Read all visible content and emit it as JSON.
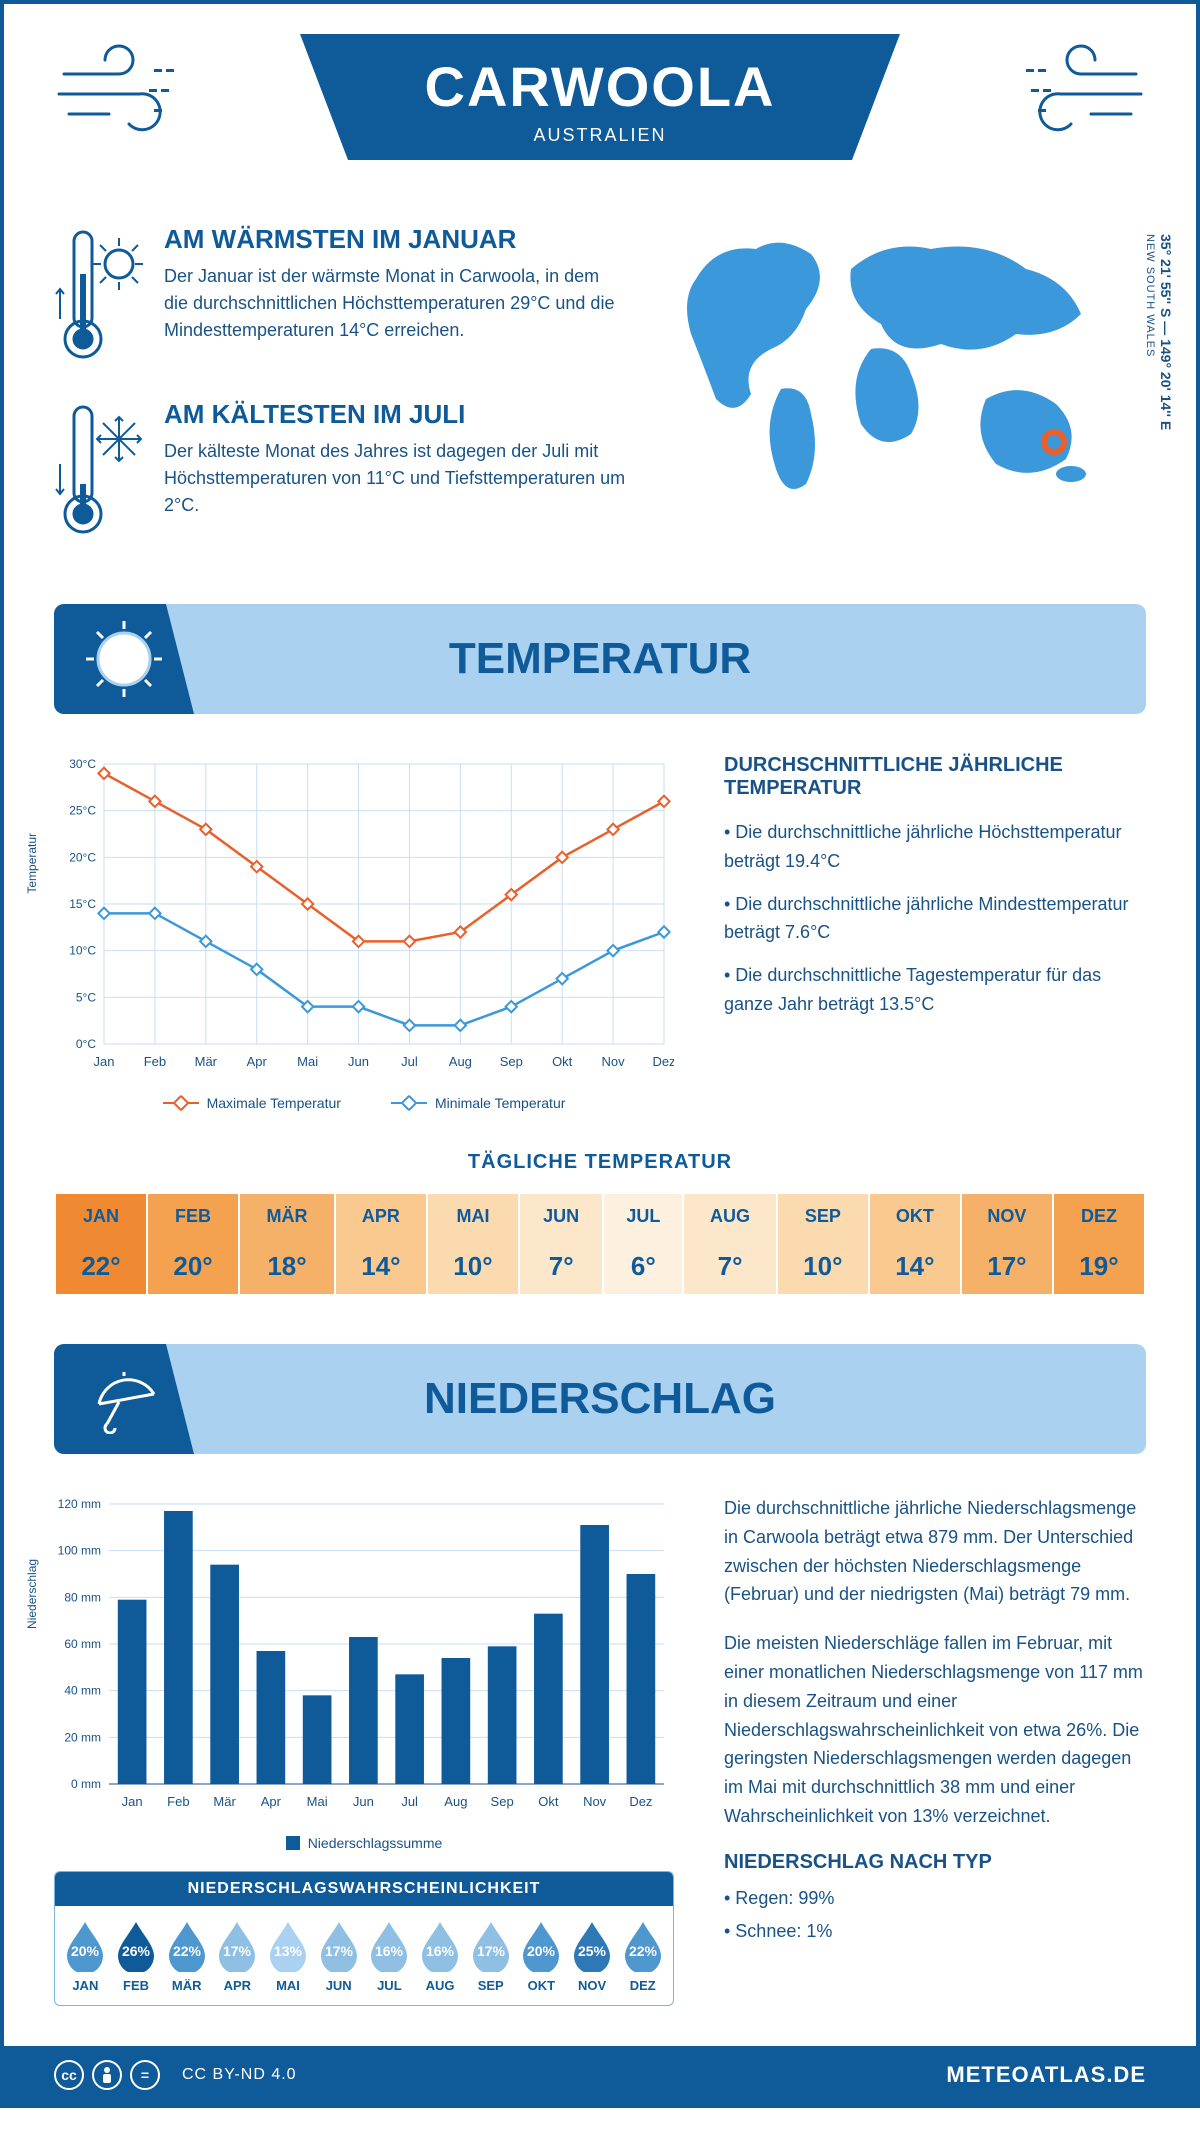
{
  "header": {
    "title": "CARWOOLA",
    "subtitle": "AUSTRALIEN"
  },
  "coords": {
    "latlon": "35° 21' 55'' S — 149° 20' 14'' E",
    "region": "NEW SOUTH WALES"
  },
  "facts": {
    "warm": {
      "title": "AM WÄRMSTEN IM JANUAR",
      "text": "Der Januar ist der wärmste Monat in Carwoola, in dem die durchschnittlichen Höchsttemperaturen 29°C und die Mindesttemperaturen 14°C erreichen."
    },
    "cold": {
      "title": "AM KÄLTESTEN IM JULI",
      "text": "Der kälteste Monat des Jahres ist dagegen der Juli mit Höchsttemperaturen von 11°C und Tiefsttemperaturen um 2°C."
    }
  },
  "sections": {
    "temp": "TEMPERATUR",
    "precip": "NIEDERSCHLAG"
  },
  "temp_chart": {
    "type": "line",
    "months": [
      "Jan",
      "Feb",
      "Mär",
      "Apr",
      "Mai",
      "Jun",
      "Jul",
      "Aug",
      "Sep",
      "Okt",
      "Nov",
      "Dez"
    ],
    "max": [
      29,
      26,
      23,
      19,
      15,
      11,
      11,
      12,
      16,
      20,
      23,
      26
    ],
    "min": [
      14,
      14,
      11,
      8,
      4,
      4,
      2,
      2,
      4,
      7,
      10,
      12
    ],
    "ylim": [
      0,
      30
    ],
    "ytick_step": 5,
    "y_unit": "°C",
    "y_label": "Temperatur",
    "colors": {
      "max": "#e8602c",
      "min": "#3b98da",
      "grid": "#c9def2",
      "axis": "#185286"
    },
    "legend": {
      "max": "Maximale Temperatur",
      "min": "Minimale Temperatur"
    }
  },
  "temp_info": {
    "heading": "DURCHSCHNITTLICHE JÄHRLICHE TEMPERATUR",
    "b1": "• Die durchschnittliche jährliche Höchsttemperatur beträgt 19.4°C",
    "b2": "• Die durchschnittliche jährliche Mindesttemperatur beträgt 7.6°C",
    "b3": "• Die durchschnittliche Tagestemperatur für das ganze Jahr beträgt 13.5°C"
  },
  "daily": {
    "heading": "TÄGLICHE TEMPERATUR",
    "months": [
      "JAN",
      "FEB",
      "MÄR",
      "APR",
      "MAI",
      "JUN",
      "JUL",
      "AUG",
      "SEP",
      "OKT",
      "NOV",
      "DEZ"
    ],
    "values": [
      "22°",
      "20°",
      "18°",
      "14°",
      "10°",
      "7°",
      "6°",
      "7°",
      "10°",
      "14°",
      "17°",
      "19°"
    ],
    "colors": [
      "#f08a32",
      "#f4a24f",
      "#f6b168",
      "#f9c98f",
      "#fbdab0",
      "#fde7cb",
      "#fef0de",
      "#fde7cb",
      "#fbdab0",
      "#f9c98f",
      "#f6b168",
      "#f4a24f"
    ]
  },
  "precip_chart": {
    "type": "bar",
    "months": [
      "Jan",
      "Feb",
      "Mär",
      "Apr",
      "Mai",
      "Jun",
      "Jul",
      "Aug",
      "Sep",
      "Okt",
      "Nov",
      "Dez"
    ],
    "values": [
      79,
      117,
      94,
      57,
      38,
      63,
      47,
      54,
      59,
      73,
      111,
      90
    ],
    "ylim": [
      0,
      120
    ],
    "ytick_step": 20,
    "y_unit": " mm",
    "y_label": "Niederschlag",
    "bar_color": "#0f5a99",
    "grid": "#c9def2",
    "axis": "#185286",
    "legend": "Niederschlagssumme"
  },
  "prob": {
    "heading": "NIEDERSCHLAGSWAHRSCHEINLICHKEIT",
    "months": [
      "JAN",
      "FEB",
      "MÄR",
      "APR",
      "MAI",
      "JUN",
      "JUL",
      "AUG",
      "SEP",
      "OKT",
      "NOV",
      "DEZ"
    ],
    "values": [
      "20%",
      "26%",
      "22%",
      "17%",
      "13%",
      "17%",
      "16%",
      "16%",
      "17%",
      "20%",
      "25%",
      "22%"
    ],
    "colors": [
      "#4f97cf",
      "#0f5a99",
      "#4f97cf",
      "#8fc0e3",
      "#abd1f0",
      "#8fc0e3",
      "#8fc0e3",
      "#8fc0e3",
      "#8fc0e3",
      "#4f97cf",
      "#2e78b6",
      "#4f97cf"
    ]
  },
  "precip_text": {
    "p1": "Die durchschnittliche jährliche Niederschlagsmenge in Carwoola beträgt etwa 879 mm. Der Unterschied zwischen der höchsten Niederschlagsmenge (Februar) und der niedrigsten (Mai) beträgt 79 mm.",
    "p2": "Die meisten Niederschläge fallen im Februar, mit einer monatlichen Niederschlagsmenge von 117 mm in diesem Zeitraum und einer Niederschlagswahrscheinlichkeit von etwa 26%. Die geringsten Niederschlagsmengen werden dagegen im Mai mit durchschnittlich 38 mm und einer Wahrscheinlichkeit von 13% verzeichnet.",
    "type_heading": "NIEDERSCHLAG NACH TYP",
    "type1": "• Regen: 99%",
    "type2": "• Schnee: 1%"
  },
  "footer": {
    "license": "CC BY-ND 4.0",
    "brand": "METEOATLAS.DE"
  }
}
